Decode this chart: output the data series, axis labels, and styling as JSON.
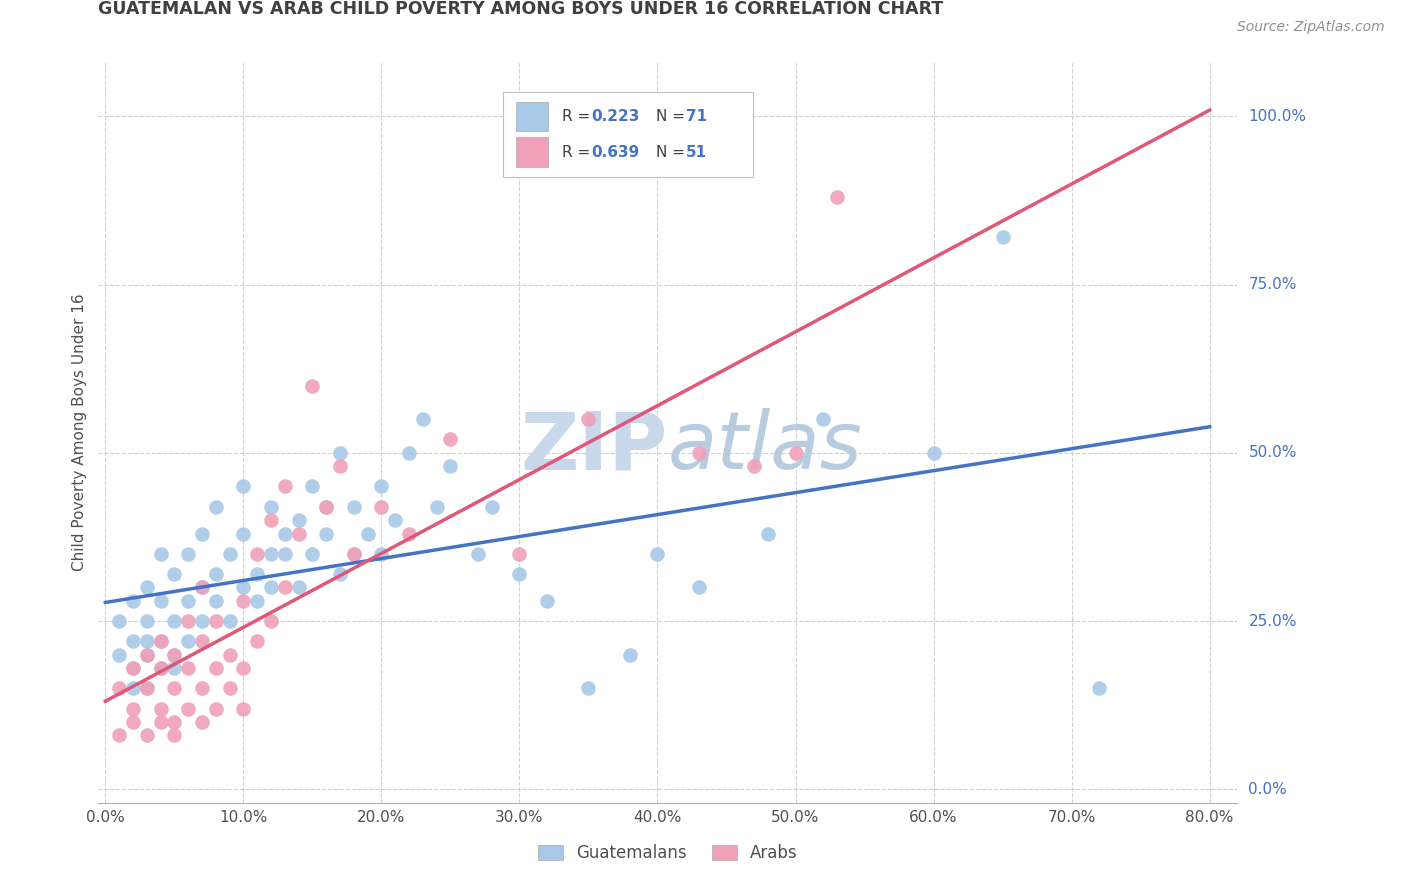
{
  "title": "GUATEMALAN VS ARAB CHILD POVERTY AMONG BOYS UNDER 16 CORRELATION CHART",
  "source": "Source: ZipAtlas.com",
  "ylabel": "Child Poverty Among Boys Under 16",
  "xlim": [
    0,
    0.8
  ],
  "ylim": [
    0.0,
    1.05
  ],
  "guatemalan_R": 0.223,
  "guatemalan_N": 71,
  "arab_R": 0.639,
  "arab_N": 51,
  "blue_color": "#A8C8E8",
  "pink_color": "#F0A0B8",
  "blue_line_color": "#4472C4",
  "pink_line_color": "#E05878",
  "title_color": "#404040",
  "source_color": "#909090",
  "axis_label_color": "#4472C4",
  "grid_color": "#D0D0D0",
  "watermark_color": "#C8D8EA",
  "background_color": "#FFFFFF",
  "blue_line_intercept": 0.3,
  "blue_line_slope": 0.25,
  "pink_line_intercept": 0.05,
  "pink_line_slope": 0.9
}
